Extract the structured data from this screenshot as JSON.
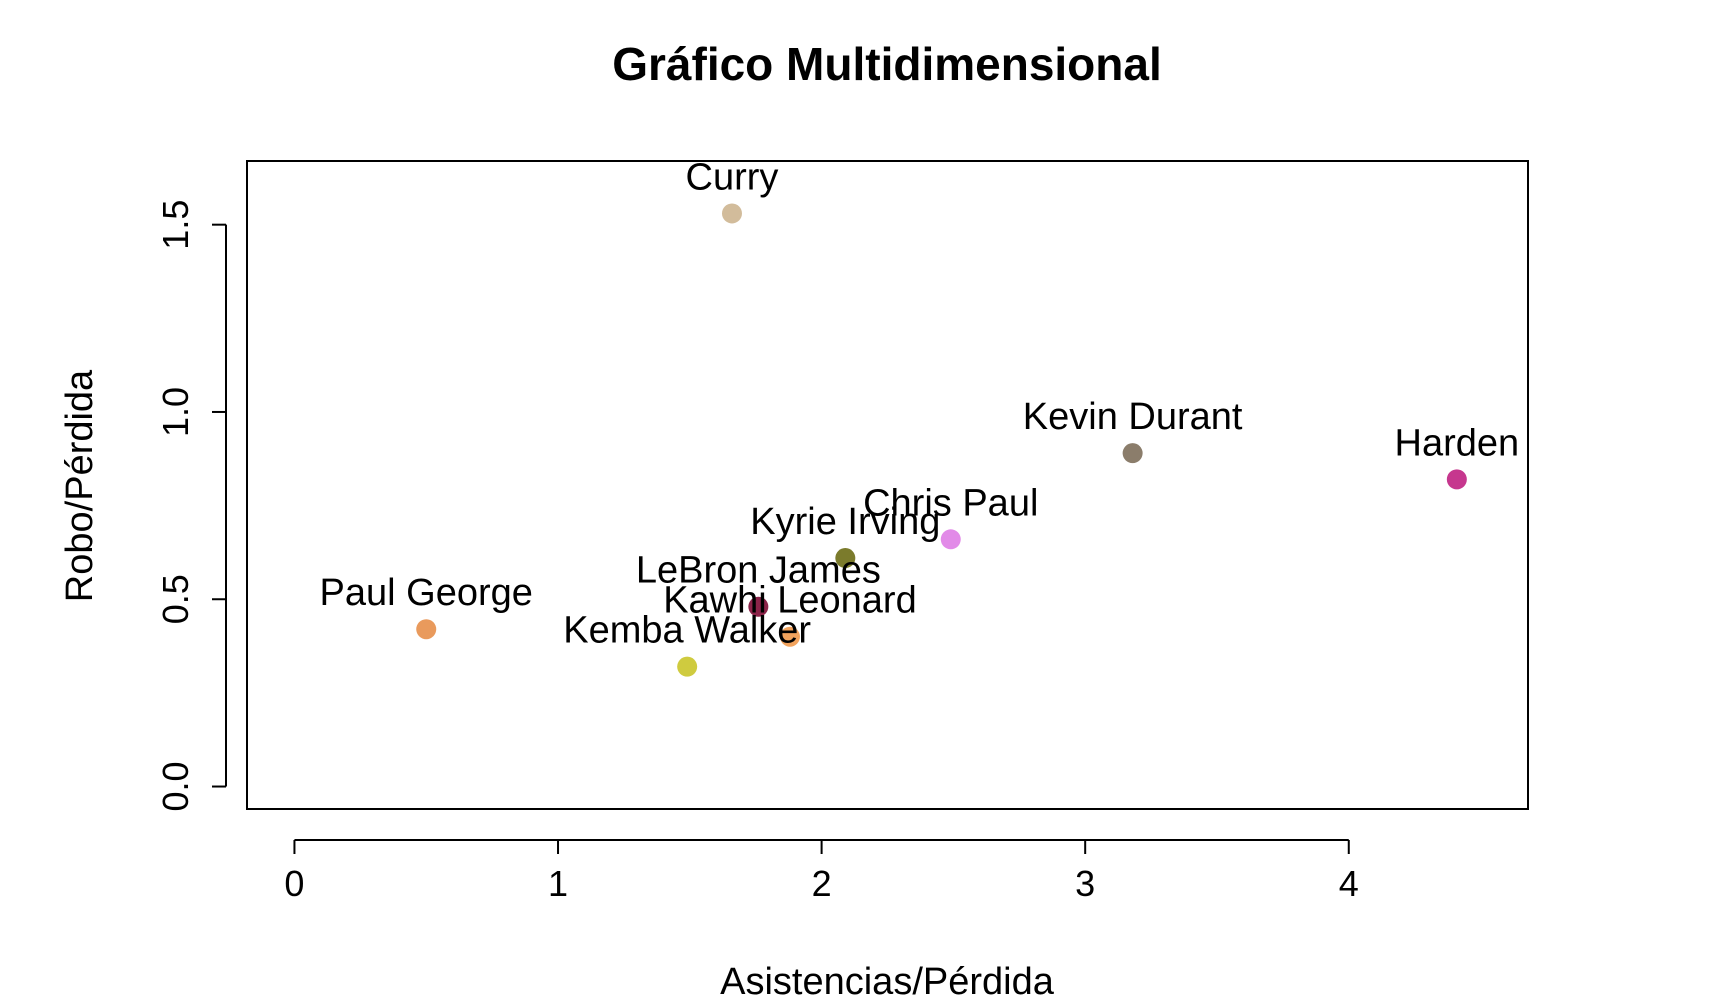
{
  "chart_data": {
    "type": "scatter",
    "title": "Gráfico Multidimensional",
    "xlabel": "Asistencias/Pérdida",
    "ylabel": "Robo/Pérdida",
    "xlim": [
      -0.18,
      4.68
    ],
    "ylim": [
      -0.06,
      1.67
    ],
    "x_ticks": [
      0,
      1,
      2,
      3,
      4
    ],
    "x_tick_labels": [
      "0",
      "1",
      "2",
      "3",
      "4"
    ],
    "y_ticks": [
      0.0,
      0.5,
      1.0,
      1.5
    ],
    "y_tick_labels": [
      "0.0",
      "0.5",
      "1.0",
      "1.5"
    ],
    "grid": false,
    "legend": "none",
    "points": [
      {
        "label": "Curry",
        "x": 1.66,
        "y": 1.53,
        "color": "#d2bc9b"
      },
      {
        "label": "Kevin Durant",
        "x": 3.18,
        "y": 0.89,
        "color": "#8b7d6b"
      },
      {
        "label": "Harden",
        "x": 4.41,
        "y": 0.82,
        "color": "#c6378e"
      },
      {
        "label": "Chris Paul",
        "x": 2.49,
        "y": 0.66,
        "color": "#e28ae8"
      },
      {
        "label": "Kyrie Irving",
        "x": 2.09,
        "y": 0.61,
        "color": "#7b7b2c"
      },
      {
        "label": "LeBron James",
        "x": 1.76,
        "y": 0.48,
        "color": "#8b2449"
      },
      {
        "label": "Kawhi Leonard",
        "x": 1.88,
        "y": 0.4,
        "color": "#f2a35d"
      },
      {
        "label": "Paul George",
        "x": 0.5,
        "y": 0.42,
        "color": "#e99a5c"
      },
      {
        "label": "Kemba Walker",
        "x": 1.49,
        "y": 0.32,
        "color": "#cfcb3f"
      }
    ]
  }
}
